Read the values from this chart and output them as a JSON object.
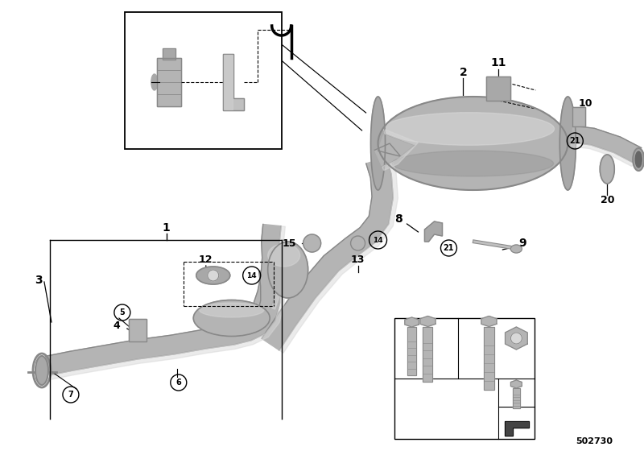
{
  "bg_color": "#ffffff",
  "diagram_number": "502730",
  "line_color": "#222222",
  "gray1": "#c0c0c0",
  "gray2": "#a8a8a8",
  "gray3": "#d8d8d8",
  "gray_dark": "#888888",
  "gray_mid": "#b4b4b4",
  "white": "#ffffff",
  "black": "#000000"
}
